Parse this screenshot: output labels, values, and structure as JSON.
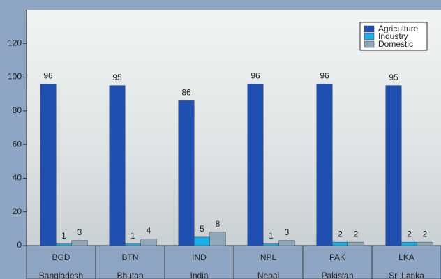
{
  "chart_data": {
    "type": "bar",
    "categories": [
      "BGD",
      "BTN",
      "IND",
      "NPL",
      "PAK",
      "LKA"
    ],
    "category_names": [
      "Bangladesh",
      "Bhutan",
      "India",
      "Nepal",
      "Pakistan",
      "Sri Lanka"
    ],
    "series": [
      {
        "name": "Agriculture",
        "color": "#1f4fb0",
        "values": [
          96,
          95,
          86,
          96,
          96,
          95
        ]
      },
      {
        "name": "Industry",
        "color": "#19aee8",
        "values": [
          1,
          1,
          5,
          1,
          2,
          2
        ]
      },
      {
        "name": "Domestic",
        "color": "#8ea8b8",
        "values": [
          3,
          4,
          8,
          3,
          2,
          2
        ]
      }
    ],
    "ylim": [
      0,
      140
    ],
    "yticks": [
      0,
      20,
      40,
      60,
      80,
      100,
      120
    ],
    "legend": "top-right"
  }
}
